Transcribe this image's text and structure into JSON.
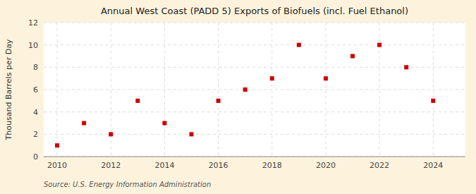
{
  "chart_data": {
    "type": "scatter",
    "title": "Annual West Coast (PADD 5) Exports of Biofuels (incl. Fuel Ethanol)",
    "ylabel": "Thousand Barrels per Day",
    "source": "Source: U.S. Energy Information Administration",
    "x": [
      2010,
      2011,
      2012,
      2013,
      2014,
      2015,
      2016,
      2017,
      2018,
      2019,
      2020,
      2021,
      2022,
      2023,
      2024
    ],
    "values": [
      1,
      3,
      2,
      5,
      3,
      2,
      5,
      6,
      7,
      10,
      7,
      9,
      10,
      8,
      5
    ],
    "color": "#cc0000",
    "marker": "square",
    "xlim": [
      2009.5,
      2025.2
    ],
    "ylim": [
      0,
      12
    ],
    "xticks": [
      2010,
      2012,
      2014,
      2016,
      2018,
      2020,
      2022,
      2024
    ],
    "yticks": [
      0,
      2,
      4,
      6,
      8,
      10,
      12
    ],
    "grid": true
  }
}
